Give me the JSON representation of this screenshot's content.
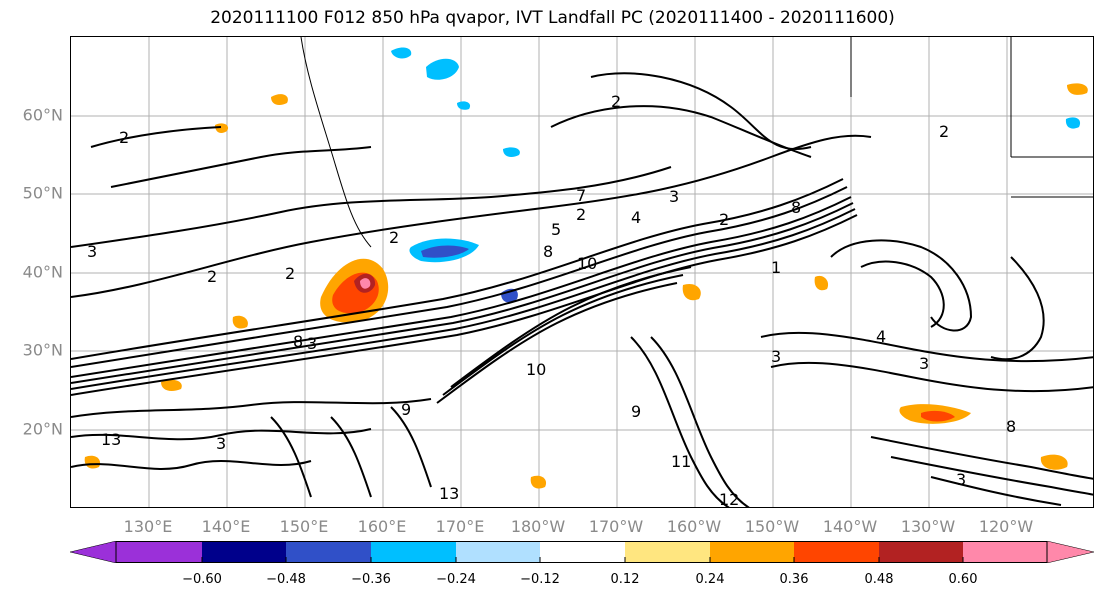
{
  "title": "2020111100 F012 850 hPa qvapor, IVT Landfall PC (2020111400 - 2020111600)",
  "map": {
    "latitude_labels": [
      "60°N",
      "50°N",
      "40°N",
      "30°N",
      "20°N"
    ],
    "longitude_labels": [
      "130°E",
      "140°E",
      "150°E",
      "160°E",
      "170°E",
      "180°W",
      "170°W",
      "160°W",
      "150°W",
      "140°W",
      "130°W",
      "120°W"
    ],
    "contour_labels": [
      "2",
      "2",
      "3",
      "2",
      "2",
      "2",
      "7",
      "2",
      "4",
      "5",
      "3",
      "2",
      "8",
      "10",
      "8",
      "1",
      "2",
      "3",
      "4",
      "8",
      "10",
      "3",
      "9",
      "9",
      "3",
      "11",
      "12",
      "13",
      "3",
      "8",
      "13",
      "3"
    ],
    "grid": true,
    "coastlines": true
  },
  "colorbar": {
    "tick_labels": [
      "−0.60",
      "−0.48",
      "−0.36",
      "−0.24",
      "−0.12",
      "0.12",
      "0.24",
      "0.36",
      "0.48",
      "0.60"
    ],
    "colors": [
      "#9b30d9",
      "#00008b",
      "#3050c8",
      "#00bfff",
      "#b0e0ff",
      "#ffffff",
      "#ffe680",
      "#ffa500",
      "#ff4500",
      "#b22222",
      "#ff88aa"
    ],
    "extend": "both"
  }
}
